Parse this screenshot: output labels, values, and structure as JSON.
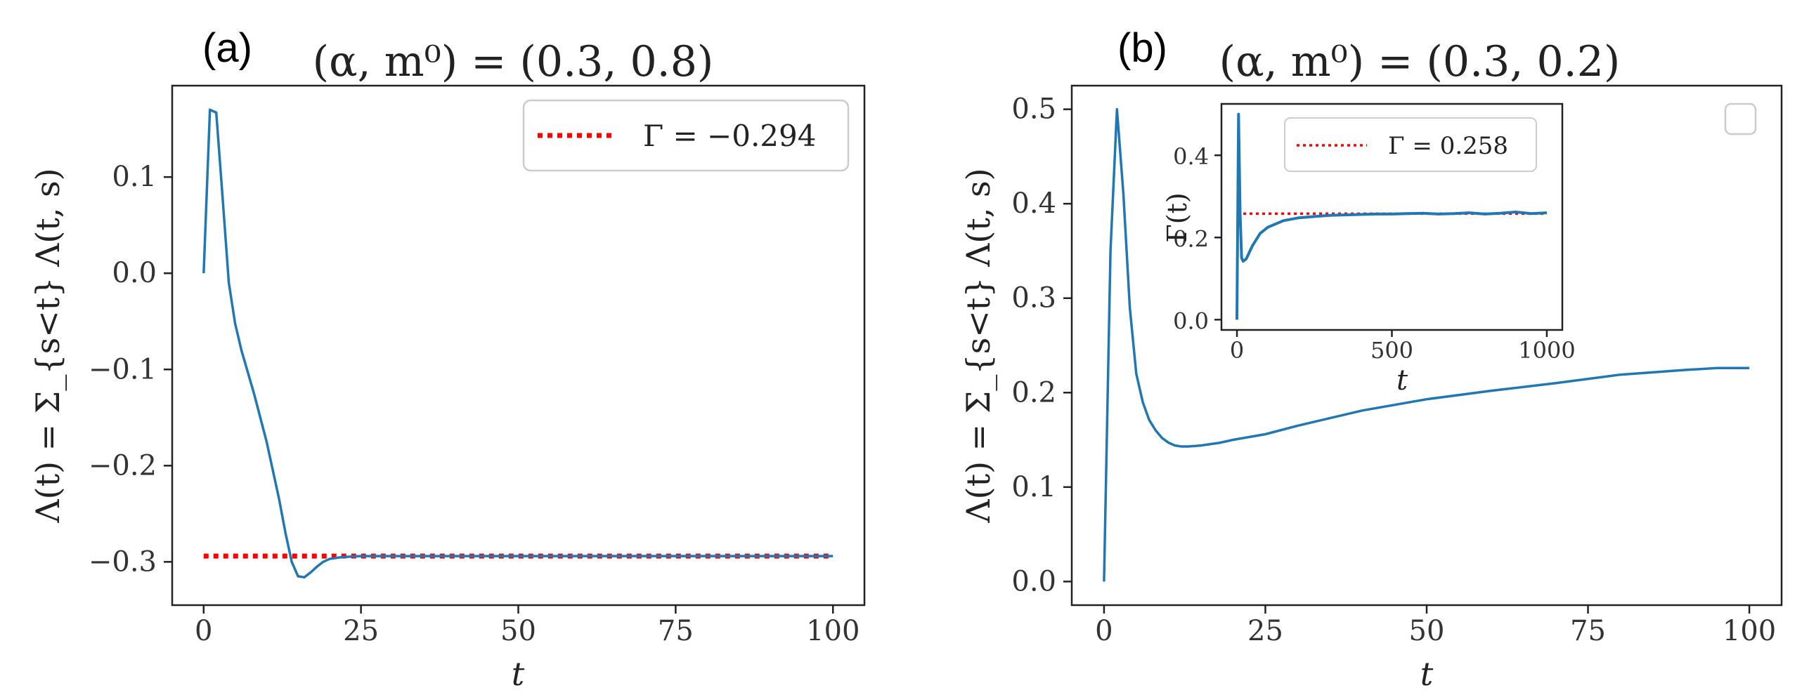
{
  "chart_data": [
    {
      "id": "a",
      "panel_label": "(a)",
      "type": "line",
      "title": "(α, m⁰) = (0.3, 0.8)",
      "xlabel": "t",
      "ylabel": "Λ(t) = Σ_{s<t} Λ(t, s)",
      "xlim": [
        -5,
        105
      ],
      "ylim": [
        -0.345,
        0.195
      ],
      "xticks": [
        0,
        25,
        50,
        75,
        100
      ],
      "xtick_labels": [
        "0",
        "25",
        "50",
        "75",
        "100"
      ],
      "yticks": [
        -0.3,
        -0.2,
        -0.1,
        0.0,
        0.1
      ],
      "ytick_labels": [
        "−0.3",
        "−0.2",
        "−0.1",
        "0.0",
        "0.1"
      ],
      "series": [
        {
          "name": "Λ(t)",
          "color": "#1f77b4",
          "x": [
            0,
            1,
            2,
            3,
            4,
            5,
            6,
            8,
            10,
            12,
            13,
            14,
            15,
            16,
            17,
            18,
            19,
            20,
            22,
            25,
            30,
            40,
            50,
            60,
            70,
            80,
            90,
            100
          ],
          "y": [
            0.0,
            0.17,
            0.167,
            0.08,
            -0.01,
            -0.052,
            -0.08,
            -0.125,
            -0.175,
            -0.235,
            -0.27,
            -0.3,
            -0.315,
            -0.316,
            -0.311,
            -0.305,
            -0.3,
            -0.297,
            -0.295,
            -0.294,
            -0.294,
            -0.294,
            -0.294,
            -0.294,
            -0.294,
            -0.294,
            -0.294,
            -0.294
          ]
        }
      ],
      "hlines": [
        {
          "name": "Γ",
          "y": -0.294,
          "x": [
            0,
            100
          ],
          "color": "#ff0000",
          "style": "dotted"
        }
      ],
      "legend": {
        "entries": [
          {
            "label": "Γ = −0.294",
            "color": "#ff0000",
            "style": "dotted"
          }
        ],
        "placement": "top-right"
      }
    },
    {
      "id": "b",
      "panel_label": "(b)",
      "type": "line",
      "title": "(α, m⁰) = (0.3, 0.2)",
      "xlabel": "t",
      "ylabel": "Λ(t) = Σ_{s<t} Λ(t, s)",
      "xlim": [
        -5,
        105
      ],
      "ylim": [
        -0.025,
        0.525
      ],
      "xticks": [
        0,
        25,
        50,
        75,
        100
      ],
      "xtick_labels": [
        "0",
        "25",
        "50",
        "75",
        "100"
      ],
      "yticks": [
        0.0,
        0.1,
        0.2,
        0.3,
        0.4,
        0.5
      ],
      "ytick_labels": [
        "0.0",
        "0.1",
        "0.2",
        "0.3",
        "0.4",
        "0.5"
      ],
      "series": [
        {
          "name": "Λ(t)",
          "color": "#1f77b4",
          "x": [
            0,
            1,
            2,
            3,
            4,
            5,
            6,
            7,
            8,
            9,
            10,
            11,
            12,
            13,
            15,
            18,
            20,
            25,
            30,
            40,
            50,
            60,
            70,
            80,
            90,
            95,
            100
          ],
          "y": [
            0.0,
            0.35,
            0.5,
            0.41,
            0.29,
            0.22,
            0.19,
            0.171,
            0.16,
            0.152,
            0.147,
            0.144,
            0.143,
            0.143,
            0.144,
            0.147,
            0.15,
            0.156,
            0.165,
            0.181,
            0.193,
            0.202,
            0.21,
            0.219,
            0.224,
            0.226,
            0.226
          ]
        }
      ],
      "legend": {
        "entries": [],
        "placement": "top-right"
      },
      "inset": {
        "type": "line",
        "xlabel": "t",
        "ylabel": "Γ(t)",
        "xlim": [
          -50,
          1050
        ],
        "ylim": [
          -0.025,
          0.525
        ],
        "xticks": [
          0,
          500,
          1000
        ],
        "xtick_labels": [
          "0",
          "500",
          "1000"
        ],
        "yticks": [
          0.0,
          0.2,
          0.4
        ],
        "ytick_labels": [
          "0.0",
          "0.2",
          "0.4"
        ],
        "series": [
          {
            "name": "Γ(t)",
            "color": "#1f77b4",
            "x": [
              0,
              5,
              10,
              15,
              20,
              30,
              50,
              75,
              100,
              150,
              200,
              250,
              300,
              350,
              400,
              450,
              500,
              550,
              600,
              650,
              700,
              750,
              800,
              850,
              900,
              950,
              1000
            ],
            "y": [
              0.0,
              0.5,
              0.26,
              0.15,
              0.142,
              0.148,
              0.18,
              0.21,
              0.225,
              0.241,
              0.248,
              0.251,
              0.254,
              0.255,
              0.256,
              0.257,
              0.257,
              0.258,
              0.259,
              0.257,
              0.258,
              0.26,
              0.257,
              0.259,
              0.262,
              0.258,
              0.26
            ]
          }
        ],
        "hlines": [
          {
            "name": "Γ",
            "y": 0.258,
            "x": [
              0,
              1000
            ],
            "color": "#ff0000",
            "style": "dotted"
          }
        ],
        "legend": {
          "entries": [
            {
              "label": "Γ = 0.258",
              "color": "#ff0000",
              "style": "dotted"
            }
          ],
          "placement": "top"
        }
      }
    }
  ]
}
